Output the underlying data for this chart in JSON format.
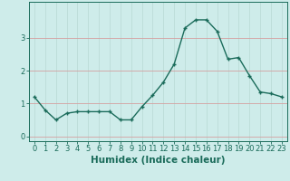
{
  "x": [
    0,
    1,
    2,
    3,
    4,
    5,
    6,
    7,
    8,
    9,
    10,
    11,
    12,
    13,
    14,
    15,
    16,
    17,
    18,
    19,
    20,
    21,
    22,
    23
  ],
  "y": [
    1.2,
    0.8,
    0.5,
    0.7,
    0.75,
    0.75,
    0.75,
    0.75,
    0.5,
    0.5,
    0.9,
    1.25,
    1.65,
    2.2,
    3.3,
    3.55,
    3.55,
    3.2,
    2.35,
    2.4,
    1.85,
    1.35,
    1.3,
    1.2
  ],
  "xlabel": "Humidex (Indice chaleur)",
  "xlim": [
    -0.5,
    23.5
  ],
  "ylim": [
    -0.15,
    4.1
  ],
  "yticks": [
    0,
    1,
    2,
    3
  ],
  "xticks": [
    0,
    1,
    2,
    3,
    4,
    5,
    6,
    7,
    8,
    9,
    10,
    11,
    12,
    13,
    14,
    15,
    16,
    17,
    18,
    19,
    20,
    21,
    22,
    23
  ],
  "line_color": "#1a6b5a",
  "marker": "+",
  "bg_color": "#ceecea",
  "hgrid_color": "#d4a0a0",
  "vgrid_color": "#b8d8d4",
  "xlabel_fontsize": 7.5,
  "tick_fontsize": 6,
  "linewidth": 1.0,
  "markersize": 3.5,
  "markeredgewidth": 1.0
}
